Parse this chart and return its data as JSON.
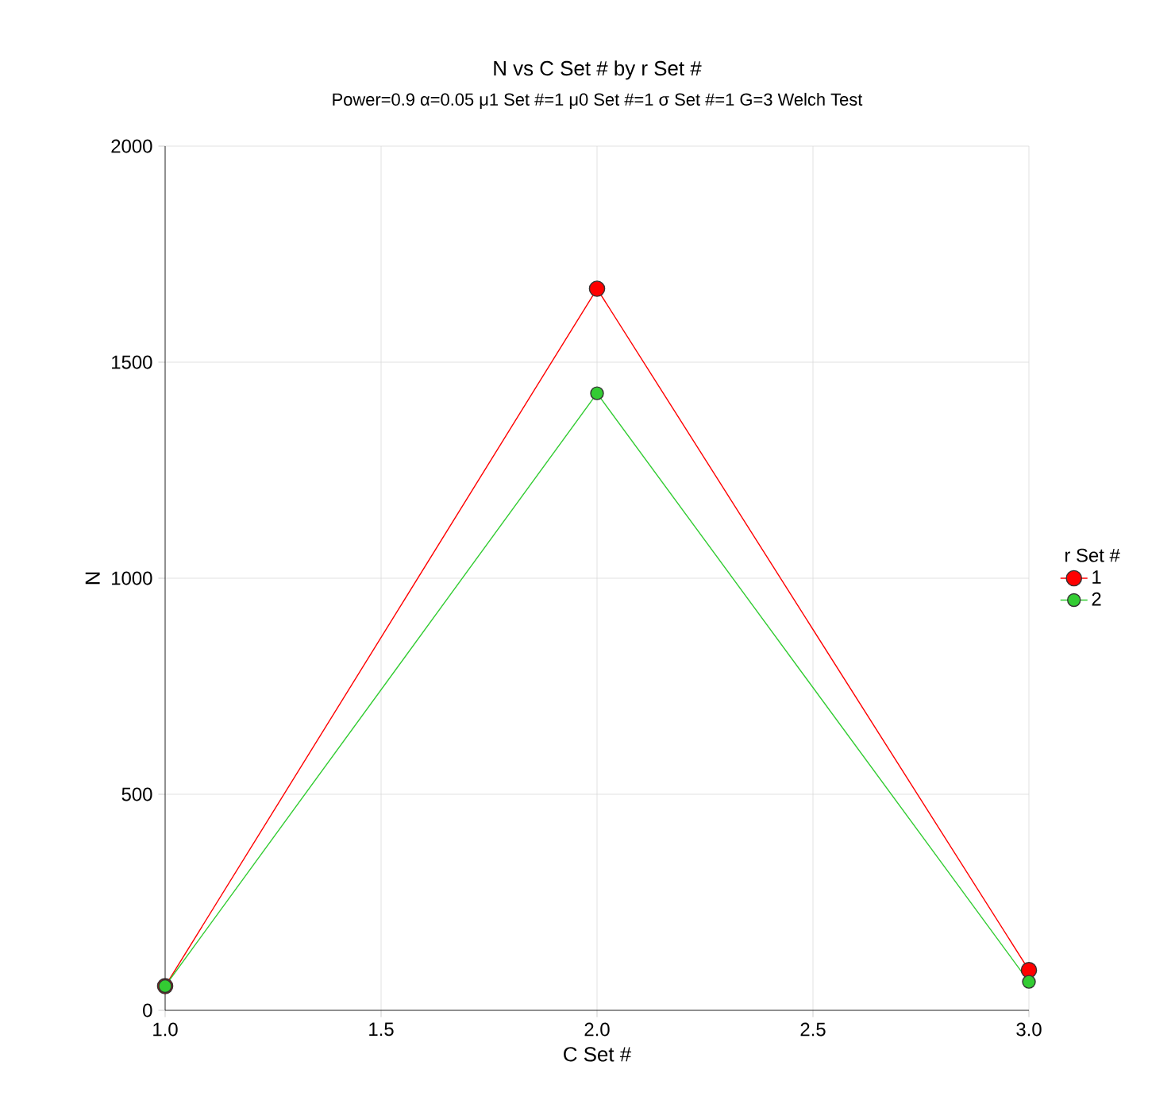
{
  "chart_data": {
    "type": "line",
    "title": "N vs C Set # by r Set #",
    "subtitle": "Power=0.9 α=0.05 μ1 Set #=1 μ0 Set #=1 σ Set #=1 G=3 Welch Test",
    "xlabel": "C Set #",
    "ylabel": "N",
    "legend_title": "r Set #",
    "x": [
      1,
      2,
      3
    ],
    "series": [
      {
        "name": "1",
        "color": "#ff0000",
        "values": [
          56,
          1670,
          93
        ]
      },
      {
        "name": "2",
        "color": "#33cc33",
        "values": [
          56,
          1428,
          66
        ]
      }
    ],
    "xlim": [
      1,
      3
    ],
    "ylim": [
      0,
      2000
    ],
    "xticks": [
      {
        "value": 1,
        "label": "1.0"
      },
      {
        "value": 1.5,
        "label": "1.5"
      },
      {
        "value": 2,
        "label": "2.0"
      },
      {
        "value": 2.5,
        "label": "2.5"
      },
      {
        "value": 3,
        "label": "3.0"
      }
    ],
    "yticks": [
      0,
      500,
      1000,
      1500,
      2000
    ],
    "grid": true,
    "legend": "right",
    "marker": "circle",
    "line_style": "solid"
  }
}
